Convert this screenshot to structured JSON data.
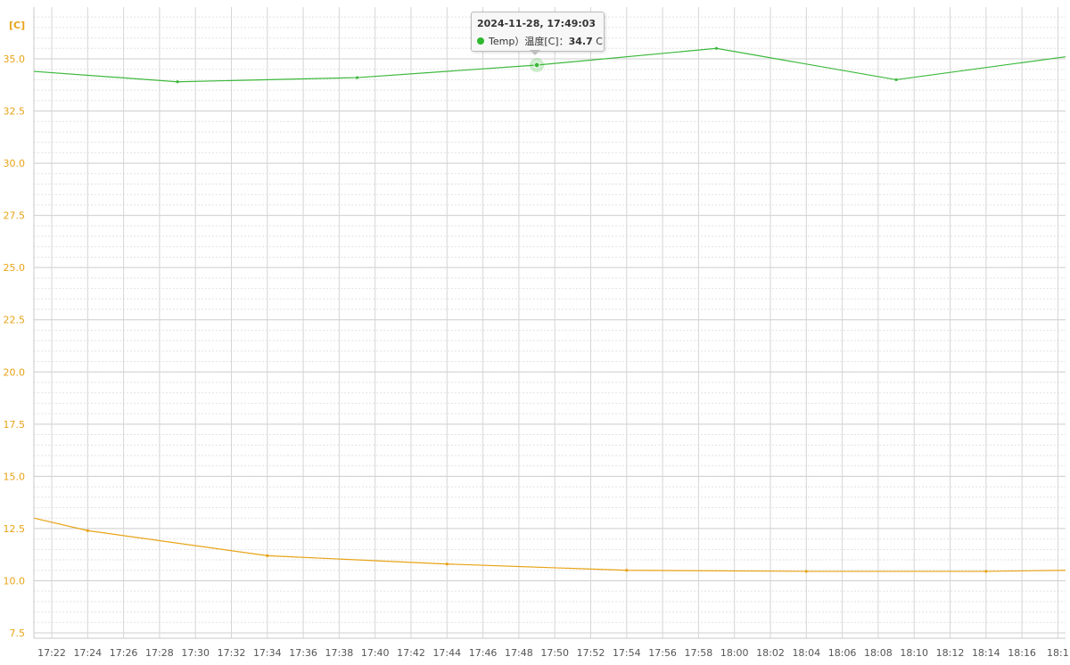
{
  "chart_data": {
    "type": "line",
    "title": "",
    "unit_label": "[C]",
    "xlabel": "",
    "ylabel": "",
    "ylim": [
      7.5,
      35.0
    ],
    "y_ticks": [
      "7.5",
      "10.0",
      "12.5",
      "15.0",
      "17.5",
      "20.0",
      "22.5",
      "25.0",
      "27.5",
      "30.0",
      "32.5",
      "35.0"
    ],
    "x_ticks": [
      "17:22",
      "17:24",
      "17:26",
      "17:28",
      "17:30",
      "17:32",
      "17:34",
      "17:36",
      "17:38",
      "17:40",
      "17:42",
      "17:44",
      "17:46",
      "17:48",
      "17:50",
      "17:52",
      "17:54",
      "17:56",
      "17:58",
      "18:00",
      "18:02",
      "18:04",
      "18:06",
      "18:08",
      "18:10",
      "18:12",
      "18:14",
      "18:16",
      "18:1"
    ],
    "grid": true,
    "series": [
      {
        "name": "Temp）温度[C]",
        "color": "#3cb83c",
        "x": [
          "17:21",
          "17:29",
          "17:39",
          "17:49",
          "17:59",
          "18:09",
          "18:19"
        ],
        "values": [
          34.4,
          33.9,
          34.1,
          34.7,
          35.5,
          34.0,
          35.1
        ]
      },
      {
        "name": "",
        "color": "#e8a317",
        "x": [
          "17:21",
          "17:24",
          "17:34",
          "17:44",
          "17:54",
          "18:04",
          "18:14",
          "18:19"
        ],
        "values": [
          13.0,
          12.4,
          11.2,
          10.8,
          10.5,
          10.45,
          10.45,
          10.5
        ]
      }
    ]
  },
  "tooltip": {
    "title": "2024-11-28, 17:49:03",
    "series_label": "Temp）温度[C]",
    "separator": "：",
    "value": "34.7",
    "unit": "C"
  }
}
